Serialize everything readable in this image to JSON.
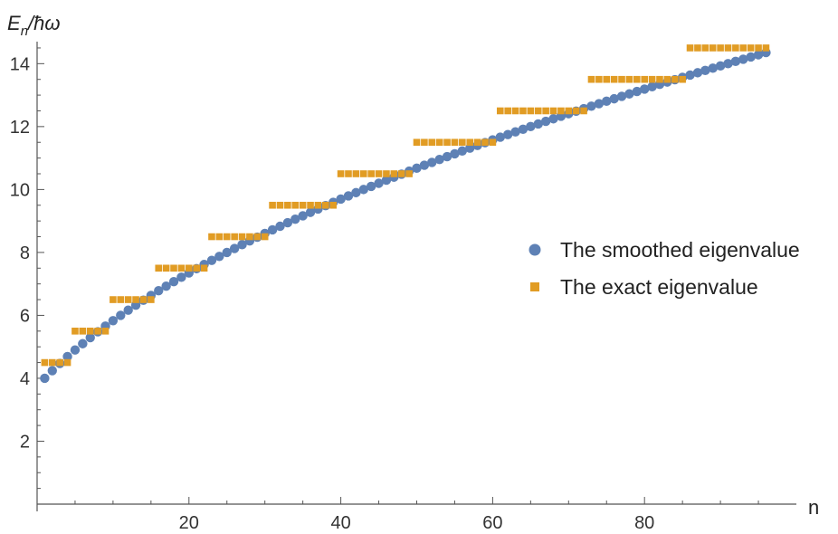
{
  "chart_data": {
    "type": "scatter",
    "xlabel": "n",
    "ylabel": {
      "base": "E",
      "subscript": "n",
      "rest": "/ħω"
    },
    "xlim": [
      0,
      100
    ],
    "ylim": [
      0,
      14.7
    ],
    "x_ticks": [
      20,
      40,
      60,
      80
    ],
    "y_ticks": [
      2,
      4,
      6,
      8,
      10,
      12,
      14
    ],
    "grid": false,
    "legend_position": "right",
    "series": [
      {
        "name": "The smoothed eigenvalue",
        "marker": "circle",
        "color": "#5e81b5",
        "formula": "sqrt(2*n + 14)",
        "n_range": [
          1,
          96
        ]
      },
      {
        "name": "The exact eigenvalue",
        "marker": "square",
        "color": "#e19c24",
        "formula": "shell value 4.5, 5.5, 6.5, ... (shell k has k+1 states)",
        "levels": [
          4.5,
          5.5,
          6.5,
          7.5,
          8.5,
          9.5,
          10.5,
          11.5,
          12.5,
          13.5
        ],
        "n_range": [
          1,
          96
        ]
      }
    ]
  }
}
